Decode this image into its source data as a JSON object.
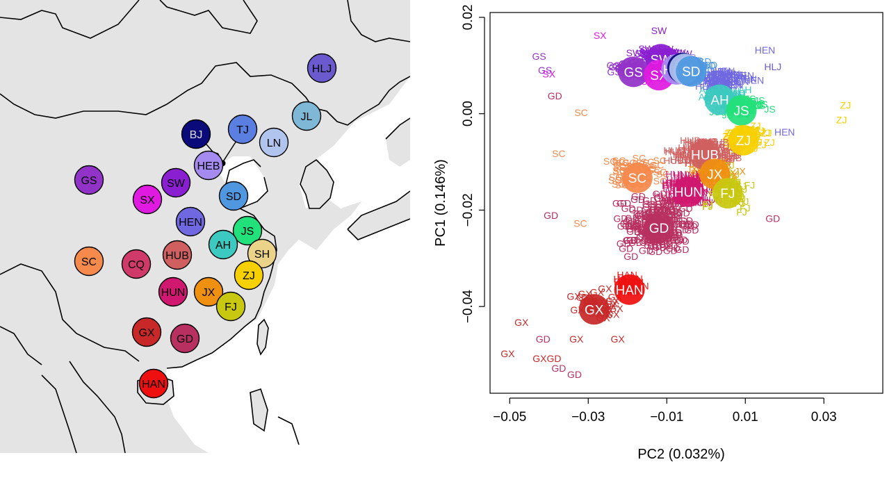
{
  "chart_data": [
    {
      "type": "map",
      "regions": [
        {
          "code": "HLJ",
          "color": "#6a5acd"
        },
        {
          "code": "JL",
          "color": "#7fb8d6"
        },
        {
          "code": "TJ",
          "color": "#5a7fe0"
        },
        {
          "code": "BJ",
          "color": "#0a0a7a"
        },
        {
          "code": "LN",
          "color": "#b0c4ee"
        },
        {
          "code": "HEB",
          "color": "#a58bf0"
        },
        {
          "code": "GS",
          "color": "#9233c8"
        },
        {
          "code": "SW",
          "color": "#8a1fd1"
        },
        {
          "code": "SX",
          "color": "#e01ae0"
        },
        {
          "code": "SD",
          "color": "#4f98e0"
        },
        {
          "code": "HEN",
          "color": "#7068e0"
        },
        {
          "code": "JS",
          "color": "#22e07a"
        },
        {
          "code": "AH",
          "color": "#3cc9c0"
        },
        {
          "code": "SH",
          "color": "#ebd48a"
        },
        {
          "code": "SC",
          "color": "#f58a4c"
        },
        {
          "code": "CQ",
          "color": "#d03a6a"
        },
        {
          "code": "HUB",
          "color": "#d06060"
        },
        {
          "code": "ZJ",
          "color": "#f7d000"
        },
        {
          "code": "HUN",
          "color": "#d01870"
        },
        {
          "code": "JX",
          "color": "#f09010"
        },
        {
          "code": "FJ",
          "color": "#c8c810"
        },
        {
          "code": "GX",
          "color": "#c82828"
        },
        {
          "code": "GD",
          "color": "#b83060"
        },
        {
          "code": "HAN",
          "color": "#ee1010"
        }
      ]
    },
    {
      "type": "scatter",
      "xlabel": "PC2 (0.032%)",
      "ylabel": "PC1 (0.146%)",
      "xlim": [
        -0.055,
        0.045
      ],
      "ylim": [
        -0.058,
        0.021
      ],
      "xticks": [
        -0.05,
        -0.03,
        -0.01,
        0.01,
        0.03
      ],
      "xtick_labels": [
        "−0.05",
        "−0.03",
        "−0.01",
        "0.01",
        "0.03"
      ],
      "yticks": [
        0.02,
        0.0,
        -0.02,
        -0.04
      ],
      "ytick_labels": [
        "0.02",
        "0.00",
        "−0.02",
        "−0.04"
      ],
      "centroids": [
        {
          "code": "SW",
          "x": -0.0115,
          "y": 0.0113,
          "color": "#8a1fd1"
        },
        {
          "code": "GS",
          "x": -0.0185,
          "y": 0.0087,
          "color": "#9233c8"
        },
        {
          "code": "SX",
          "x": -0.012,
          "y": 0.008,
          "color": "#e01ae0"
        },
        {
          "code": "HEB",
          "x": -0.0075,
          "y": 0.0092,
          "color": "#a58bf0"
        },
        {
          "code": "BJ",
          "x": -0.006,
          "y": 0.0095,
          "color": "#0a0a7a"
        },
        {
          "code": "TJ",
          "x": -0.0045,
          "y": 0.009,
          "color": "#5a7fe0"
        },
        {
          "code": "LN",
          "x": -0.0055,
          "y": 0.0093,
          "color": "#b0c4ee"
        },
        {
          "code": "SD",
          "x": -0.0038,
          "y": 0.0088,
          "color": "#4f98e0"
        },
        {
          "code": "AH",
          "x": 0.0035,
          "y": 0.0029,
          "color": "#3cc9c0"
        },
        {
          "code": "JS",
          "x": 0.009,
          "y": 0.0007,
          "color": "#22e07a"
        },
        {
          "code": "ZJ",
          "x": 0.0095,
          "y": -0.0055,
          "color": "#f7d000"
        },
        {
          "code": "HUB",
          "x": -0.0003,
          "y": -0.0085,
          "color": "#d06060"
        },
        {
          "code": "JX",
          "x": 0.0022,
          "y": -0.0125,
          "color": "#f09010"
        },
        {
          "code": "SC",
          "x": -0.0175,
          "y": -0.0133,
          "color": "#f58a4c"
        },
        {
          "code": "HUN",
          "x": -0.0045,
          "y": -0.0162,
          "color": "#d01870"
        },
        {
          "code": "FJ",
          "x": 0.0055,
          "y": -0.0165,
          "color": "#c8c810"
        },
        {
          "code": "GD",
          "x": -0.012,
          "y": -0.0237,
          "color": "#b83060"
        },
        {
          "code": "HAN",
          "x": -0.0195,
          "y": -0.0365,
          "color": "#ee1010"
        },
        {
          "code": "GX",
          "x": -0.0285,
          "y": -0.0406,
          "color": "#c82828"
        }
      ],
      "outlier_labels": [
        {
          "code": "GD",
          "x": -0.0385,
          "y": 0.003
        },
        {
          "code": "GD",
          "x": -0.0395,
          "y": -0.0218
        },
        {
          "code": "GD",
          "x": 0.017,
          "y": -0.0225
        },
        {
          "code": "GX",
          "x": -0.047,
          "y": -0.044
        },
        {
          "code": "GX",
          "x": -0.0505,
          "y": -0.0505
        },
        {
          "code": "GD",
          "x": -0.0415,
          "y": -0.0475
        },
        {
          "code": "GX",
          "x": -0.033,
          "y": -0.0475
        },
        {
          "code": "GX",
          "x": -0.0225,
          "y": -0.0475
        },
        {
          "code": "GXGD",
          "x": -0.0405,
          "y": -0.0515
        },
        {
          "code": "GD",
          "x": -0.0375,
          "y": -0.0535
        },
        {
          "code": "GD",
          "x": -0.0335,
          "y": -0.0548
        },
        {
          "code": "SC",
          "x": -0.0375,
          "y": -0.009
        },
        {
          "code": "SC",
          "x": -0.032,
          "y": -0.0235
        },
        {
          "code": "SC",
          "x": -0.0318,
          "y": -0.0005
        },
        {
          "code": "ZJ",
          "x": 0.0355,
          "y": 0.001
        },
        {
          "code": "ZJ",
          "x": 0.0345,
          "y": -0.002
        },
        {
          "code": "GS",
          "x": -0.0425,
          "y": 0.0112
        },
        {
          "code": "GS",
          "x": -0.041,
          "y": 0.0083
        },
        {
          "code": "SX",
          "x": -0.04,
          "y": 0.0075
        },
        {
          "code": "SW",
          "x": -0.012,
          "y": 0.0165
        },
        {
          "code": "SX",
          "x": -0.027,
          "y": 0.0155
        },
        {
          "code": "HLJ",
          "x": 0.017,
          "y": 0.009
        },
        {
          "code": "HEN",
          "x": 0.015,
          "y": 0.0125
        },
        {
          "code": "HEN",
          "x": 0.02,
          "y": -0.0045
        }
      ]
    }
  ]
}
